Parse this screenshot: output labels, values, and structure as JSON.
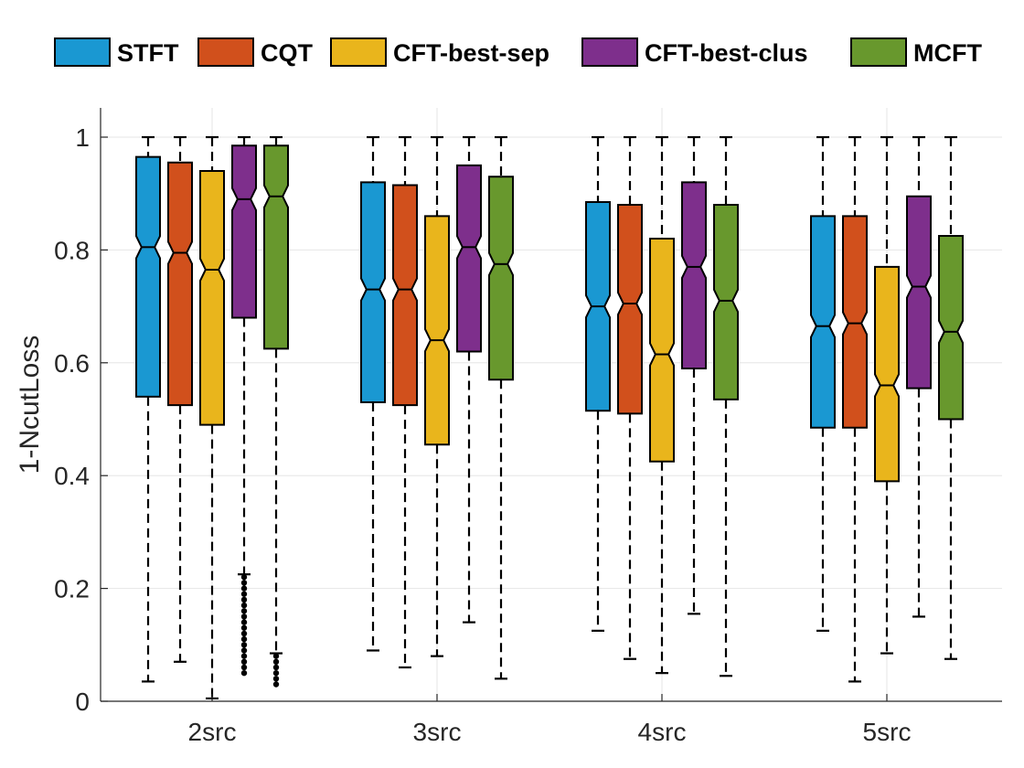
{
  "chart_data": {
    "type": "boxplot",
    "title": "",
    "xlabel": "",
    "ylabel": "1-NcutLoss",
    "ylim": [
      0,
      1.0
    ],
    "yticks": [
      0,
      0.2,
      0.4,
      0.6,
      0.8,
      1
    ],
    "ytick_labels": [
      "0",
      "0.2",
      "0.4",
      "0.6",
      "0.8",
      "1"
    ],
    "grid": true,
    "legend_position": "top",
    "categories": [
      "2src",
      "3src",
      "4src",
      "5src"
    ],
    "series": [
      {
        "name": "STFT",
        "color": "#1a98d2",
        "boxes": [
          {
            "min": 0.035,
            "q1": 0.54,
            "median": 0.805,
            "q3": 0.965,
            "max": 1.0,
            "outliers": []
          },
          {
            "min": 0.09,
            "q1": 0.53,
            "median": 0.73,
            "q3": 0.92,
            "max": 1.0,
            "outliers": []
          },
          {
            "min": 0.125,
            "q1": 0.515,
            "median": 0.7,
            "q3": 0.885,
            "max": 1.0,
            "outliers": []
          },
          {
            "min": 0.125,
            "q1": 0.485,
            "median": 0.665,
            "q3": 0.86,
            "max": 1.0,
            "outliers": []
          }
        ]
      },
      {
        "name": "CQT",
        "color": "#d1501c",
        "boxes": [
          {
            "min": 0.07,
            "q1": 0.525,
            "median": 0.795,
            "q3": 0.955,
            "max": 1.0,
            "outliers": []
          },
          {
            "min": 0.06,
            "q1": 0.525,
            "median": 0.73,
            "q3": 0.915,
            "max": 1.0,
            "outliers": []
          },
          {
            "min": 0.075,
            "q1": 0.51,
            "median": 0.705,
            "q3": 0.88,
            "max": 1.0,
            "outliers": []
          },
          {
            "min": 0.035,
            "q1": 0.485,
            "median": 0.67,
            "q3": 0.86,
            "max": 1.0,
            "outliers": []
          }
        ]
      },
      {
        "name": "CFT-best-sep",
        "color": "#e9b51c",
        "boxes": [
          {
            "min": 0.005,
            "q1": 0.49,
            "median": 0.765,
            "q3": 0.94,
            "max": 1.0,
            "outliers": []
          },
          {
            "min": 0.08,
            "q1": 0.455,
            "median": 0.64,
            "q3": 0.86,
            "max": 1.0,
            "outliers": []
          },
          {
            "min": 0.05,
            "q1": 0.425,
            "median": 0.615,
            "q3": 0.82,
            "max": 1.0,
            "outliers": []
          },
          {
            "min": 0.085,
            "q1": 0.39,
            "median": 0.56,
            "q3": 0.77,
            "max": 1.0,
            "outliers": []
          }
        ]
      },
      {
        "name": "CFT-best-clus",
        "color": "#7e2f8c",
        "boxes": [
          {
            "min": 0.225,
            "q1": 0.68,
            "median": 0.89,
            "q3": 0.985,
            "max": 1.0,
            "outliers": [
              0.05,
              0.06,
              0.07,
              0.08,
              0.09,
              0.1,
              0.11,
              0.12,
              0.13,
              0.14,
              0.15,
              0.16,
              0.17,
              0.18,
              0.19,
              0.2,
              0.21,
              0.22
            ]
          },
          {
            "min": 0.14,
            "q1": 0.62,
            "median": 0.805,
            "q3": 0.95,
            "max": 1.0,
            "outliers": []
          },
          {
            "min": 0.155,
            "q1": 0.59,
            "median": 0.77,
            "q3": 0.92,
            "max": 1.0,
            "outliers": []
          },
          {
            "min": 0.15,
            "q1": 0.555,
            "median": 0.735,
            "q3": 0.895,
            "max": 1.0,
            "outliers": []
          }
        ]
      },
      {
        "name": "MCFT",
        "color": "#68982d",
        "boxes": [
          {
            "min": 0.085,
            "q1": 0.625,
            "median": 0.895,
            "q3": 0.985,
            "max": 1.0,
            "outliers": [
              0.03,
              0.04,
              0.05,
              0.06,
              0.07,
              0.08
            ]
          },
          {
            "min": 0.04,
            "q1": 0.57,
            "median": 0.775,
            "q3": 0.93,
            "max": 1.0,
            "outliers": []
          },
          {
            "min": 0.045,
            "q1": 0.535,
            "median": 0.71,
            "q3": 0.88,
            "max": 1.0,
            "outliers": []
          },
          {
            "min": 0.075,
            "q1": 0.5,
            "median": 0.655,
            "q3": 0.825,
            "max": 1.0,
            "outliers": []
          }
        ]
      }
    ]
  }
}
